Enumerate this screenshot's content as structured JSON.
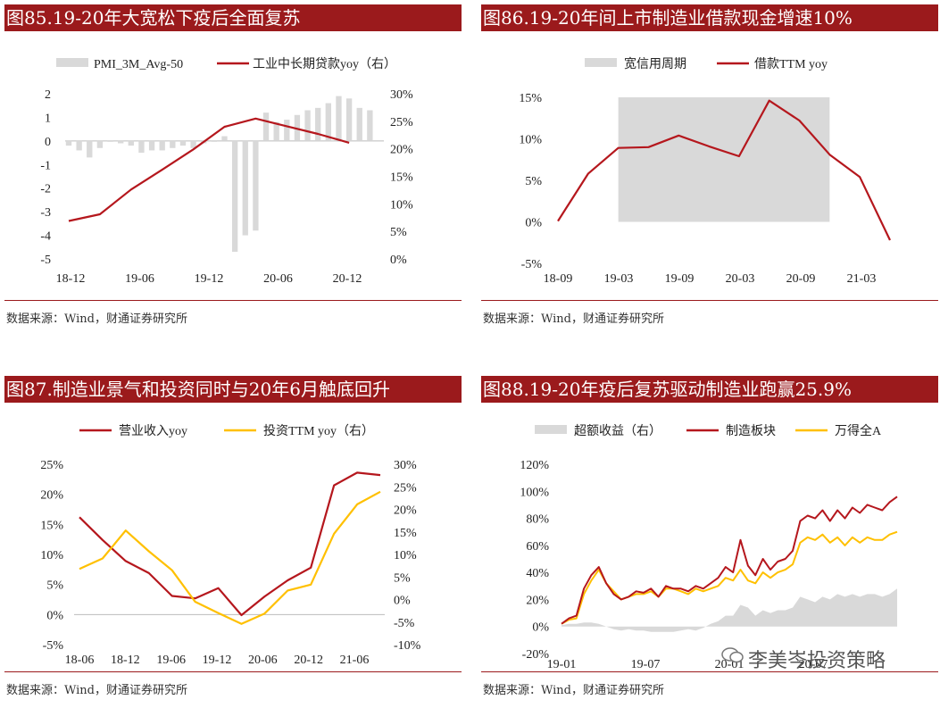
{
  "watermark": "李美岑投资策略",
  "colors": {
    "red": "#b5171d",
    "gray": "#d9d9d9",
    "yellow": "#ffc000",
    "title_bg": "#9b1a1c"
  },
  "panels": [
    {
      "title": "图85.19-20年大宽松下疫后全面复苏",
      "source": "数据来源：Wind，财通证券研究所"
    },
    {
      "title": "图86.19-20年间上市制造业借款现金增速10%",
      "source": "数据来源：Wind，财通证券研究所"
    },
    {
      "title": "图87.制造业景气和投资同时与20年6月触底回升",
      "source": "数据来源：Wind，财通证券研究所"
    },
    {
      "title": "图88.19-20年疫后复苏驱动制造业跑赢25.9%",
      "source": "数据来源：Wind，财通证券研究所"
    }
  ],
  "chart_data": [
    {
      "type": "bar+line",
      "legend": [
        "PMI_3M_Avg-50",
        "工业中长期贷款yoy（右）"
      ],
      "x_ticks": [
        "18-12",
        "19-06",
        "19-12",
        "20-06",
        "20-12"
      ],
      "y_left_ticks": [
        "2",
        "1",
        "0",
        "-1",
        "-2",
        "-3",
        "-4",
        "-5"
      ],
      "y_right_ticks": [
        "30%",
        "25%",
        "20%",
        "15%",
        "10%",
        "5%",
        "0%"
      ],
      "ylim_left": [
        -5,
        2
      ],
      "ylim_right": [
        0,
        30
      ],
      "bars_x_index": [
        0,
        1,
        2,
        3,
        4,
        5,
        6,
        7,
        8,
        9,
        10,
        11,
        12,
        13,
        14,
        15,
        16,
        17,
        18,
        19,
        20,
        21,
        22,
        23,
        24,
        25,
        26,
        27,
        28,
        29
      ],
      "bars": [
        -0.2,
        -0.4,
        -0.7,
        -0.3,
        0.0,
        -0.1,
        -0.2,
        -0.5,
        -0.4,
        -0.4,
        -0.3,
        -0.2,
        -0.3,
        -0.1,
        0.0,
        0.2,
        -4.7,
        -4.0,
        -3.8,
        1.2,
        0.8,
        0.9,
        1.1,
        1.3,
        1.4,
        1.6,
        1.9,
        1.8,
        1.4,
        1.3
      ],
      "line_x_index": [
        0,
        3,
        6,
        9,
        12,
        15,
        18,
        21,
        24,
        27
      ],
      "line": [
        6.9,
        8.1,
        12.6,
        16.2,
        19.9,
        24.0,
        25.5,
        24.1,
        22.7,
        21.1
      ]
    },
    {
      "type": "line",
      "legend": [
        "宽信用周期",
        "借款TTM yoy"
      ],
      "x_ticks": [
        "18-09",
        "19-03",
        "19-09",
        "20-03",
        "20-09",
        "21-03"
      ],
      "y_ticks": [
        "15%",
        "10%",
        "5%",
        "0%",
        "-5%"
      ],
      "ylim": [
        -5,
        15
      ],
      "shade_range": [
        2,
        9
      ],
      "x_index": [
        0,
        1,
        2,
        3,
        4,
        5,
        6,
        7,
        8,
        9,
        10,
        11
      ],
      "values": [
        0.1,
        5.8,
        8.9,
        9.0,
        10.4,
        9.1,
        7.9,
        14.6,
        12.2,
        8.1,
        5.4,
        -2.2
      ]
    },
    {
      "type": "line",
      "legend": [
        "营业收入yoy",
        "投资TTM yoy（右）"
      ],
      "x_ticks": [
        "18-06",
        "18-12",
        "19-06",
        "19-12",
        "20-06",
        "20-12",
        "21-06"
      ],
      "y_left_ticks": [
        "25%",
        "20%",
        "15%",
        "10%",
        "5%",
        "0%",
        "-5%"
      ],
      "y_right_ticks": [
        "30%",
        "25%",
        "20%",
        "15%",
        "10%",
        "5%",
        "0%",
        "-5%",
        "-10%"
      ],
      "ylim_left": [
        -5,
        25
      ],
      "ylim_right": [
        -10,
        30
      ],
      "series": [
        {
          "name": "营业收入yoy",
          "axis": "left",
          "x": [
            0,
            1,
            2,
            3,
            4,
            5,
            6,
            7,
            8,
            9,
            10,
            11,
            12,
            13
          ],
          "values": [
            16.2,
            12.4,
            8.9,
            6.9,
            3.1,
            2.7,
            4.4,
            -0.1,
            3.0,
            5.7,
            7.8,
            21.5,
            23.6,
            23.2
          ]
        },
        {
          "name": "投资TTM yoy（右）",
          "axis": "right",
          "x": [
            0,
            1,
            2,
            3,
            4,
            5,
            6,
            7,
            8,
            9,
            10,
            11,
            12,
            13
          ],
          "values": [
            6.8,
            9.1,
            15.3,
            10.7,
            6.5,
            -0.5,
            -3.0,
            -5.4,
            -3.1,
            2.0,
            3.3,
            14.6,
            21.1,
            23.9
          ]
        }
      ]
    },
    {
      "type": "line+area",
      "legend": [
        "超额收益（右）",
        "制造板块",
        "万得全A"
      ],
      "x_ticks": [
        "19-01",
        "19-07",
        "20-01",
        "20-07"
      ],
      "y_ticks": [
        "120%",
        "100%",
        "80%",
        "60%",
        "40%",
        "20%",
        "0%",
        "-20%"
      ],
      "ylim": [
        -20,
        120
      ],
      "x_index": [
        0,
        2,
        4,
        6,
        8,
        10,
        12,
        14,
        16,
        18,
        20,
        22,
        24,
        26,
        28,
        30,
        32,
        34,
        36,
        38,
        40,
        42,
        44,
        46,
        48,
        50,
        52,
        54,
        56,
        58,
        60,
        62,
        64,
        66,
        68,
        70,
        72,
        74,
        76,
        78,
        80,
        82,
        84,
        86,
        88,
        90
      ],
      "manufacturing": [
        2,
        6,
        8,
        28,
        38,
        44,
        32,
        24,
        20,
        22,
        26,
        25,
        28,
        22,
        30,
        28,
        28,
        26,
        30,
        28,
        32,
        36,
        44,
        40,
        64,
        45,
        38,
        50,
        42,
        48,
        50,
        56,
        78,
        82,
        80,
        86,
        78,
        86,
        80,
        88,
        84,
        90,
        88,
        86,
        92,
        96
      ],
      "wind_all_a": [
        2,
        5,
        6,
        24,
        34,
        42,
        32,
        26,
        20,
        22,
        24,
        24,
        26,
        22,
        28,
        28,
        26,
        24,
        28,
        26,
        28,
        30,
        36,
        34,
        42,
        34,
        32,
        40,
        36,
        40,
        42,
        46,
        62,
        66,
        64,
        68,
        62,
        66,
        60,
        66,
        62,
        66,
        64,
        64,
        68,
        70
      ],
      "excess": [
        1,
        2,
        2,
        3,
        3,
        2,
        0,
        -2,
        -3,
        -2,
        -3,
        -3,
        -4,
        -4,
        -4,
        -4,
        -3,
        -2,
        -3,
        -1,
        2,
        4,
        8,
        8,
        16,
        14,
        8,
        12,
        10,
        12,
        12,
        14,
        22,
        20,
        18,
        22,
        20,
        24,
        22,
        24,
        22,
        24,
        24,
        22,
        24,
        28
      ]
    }
  ]
}
